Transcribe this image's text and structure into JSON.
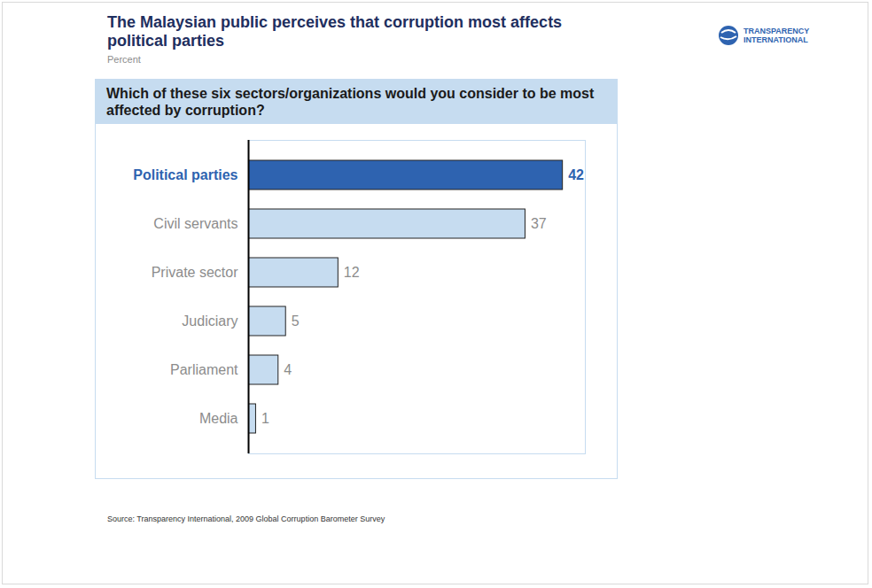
{
  "chart_data": {
    "type": "bar",
    "orientation": "horizontal",
    "title": "The Malaysian public perceives that corruption most affects political parties",
    "subtitle": "Percent",
    "question": "Which of these six sectors/organizations would you consider to be most affected by corruption?",
    "source": "Source: Transparency International, 2009 Global Corruption Barometer Survey",
    "logo": "TRANSPARENCY INTERNATIONAL",
    "categories": [
      "Political parties",
      "Civil servants",
      "Private sector",
      "Judiciary",
      "Parliament",
      "Media"
    ],
    "values": [
      42,
      37,
      12,
      5,
      4,
      1
    ],
    "colors": [
      "#2e63b0",
      "#c6dcf0",
      "#c6dcf0",
      "#c6dcf0",
      "#c6dcf0",
      "#c6dcf0"
    ],
    "xlim": [
      0,
      45
    ],
    "xticks": [],
    "data_labels": true,
    "tick_labels": "y",
    "grid": false
  }
}
